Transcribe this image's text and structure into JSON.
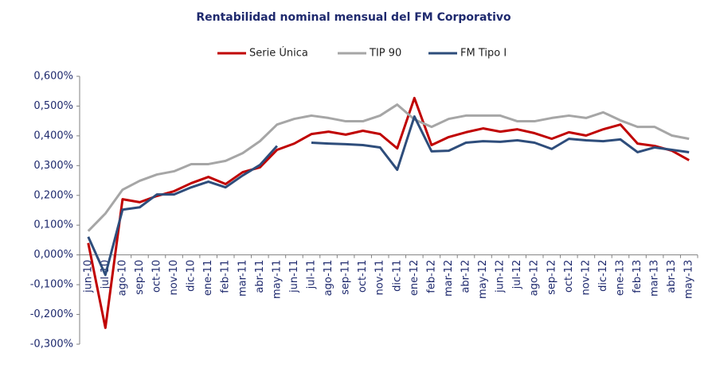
{
  "chart_data": {
    "type": "line",
    "title": "Rentabilidad nominal mensual del FM Corporativo",
    "categories": [
      "jun-10",
      "jul-10",
      "ago-10",
      "sep-10",
      "oct-10",
      "nov-10",
      "dic-10",
      "ene-11",
      "feb-11",
      "mar-11",
      "abr-11",
      "may-11",
      "jun-11",
      "jul-11",
      "ago-11",
      "sep-11",
      "oct-11",
      "nov-11",
      "dic-11",
      "ene-12",
      "feb-12",
      "mar-12",
      "abr-12",
      "may-12",
      "jun-12",
      "jul-12",
      "ago-12",
      "sep-12",
      "oct-12",
      "nov-12",
      "dic-12",
      "ene-13",
      "feb-13",
      "mar-13",
      "abr-13",
      "may-13"
    ],
    "series": [
      {
        "name": "Serie Única",
        "color": "#c00000",
        "values": [
          0.04,
          -0.245,
          0.187,
          0.177,
          0.198,
          0.214,
          0.241,
          0.262,
          0.238,
          0.278,
          0.294,
          0.353,
          0.374,
          0.406,
          0.414,
          0.404,
          0.417,
          0.406,
          0.358,
          0.527,
          0.369,
          0.396,
          0.412,
          0.425,
          0.414,
          0.422,
          0.409,
          0.39,
          0.412,
          0.401,
          0.422,
          0.438,
          0.374,
          0.366,
          0.35,
          0.318
        ]
      },
      {
        "name": "TIP 90",
        "color": "#a6a6a6",
        "values": [
          0.08,
          0.139,
          0.219,
          0.249,
          0.27,
          0.281,
          0.305,
          0.305,
          0.316,
          0.342,
          0.382,
          0.438,
          0.457,
          0.468,
          0.46,
          0.449,
          0.449,
          0.468,
          0.505,
          0.455,
          0.43,
          0.457,
          0.468,
          0.468,
          0.468,
          0.449,
          0.449,
          0.46,
          0.468,
          0.46,
          0.479,
          0.452,
          0.43,
          0.43,
          0.401,
          0.39
        ]
      },
      {
        "name": "FM Tipo I",
        "color": "#2e4d7b",
        "values": [
          0.061,
          -0.067,
          0.152,
          0.16,
          0.203,
          0.203,
          0.227,
          0.246,
          0.227,
          0.267,
          0.302,
          0.366,
          null,
          0.377,
          0.374,
          0.372,
          0.369,
          0.361,
          0.286,
          0.465,
          0.348,
          0.35,
          0.377,
          0.382,
          0.38,
          0.385,
          0.377,
          0.356,
          0.39,
          0.385,
          0.382,
          0.388,
          0.345,
          0.361,
          0.353,
          0.345
        ]
      }
    ],
    "ylim": [
      -0.3,
      0.6
    ],
    "yticks": [
      {
        "value": -0.3,
        "label": "-0,300%"
      },
      {
        "value": -0.2,
        "label": "-0,200%"
      },
      {
        "value": -0.1,
        "label": "-0,100%"
      },
      {
        "value": 0,
        "label": "0,000%"
      },
      {
        "value": 0.1,
        "label": "0,100%"
      },
      {
        "value": 0.2,
        "label": "0,200%"
      },
      {
        "value": 0.3,
        "label": "0,300%"
      },
      {
        "value": 0.4,
        "label": "0,400%"
      },
      {
        "value": 0.5,
        "label": "0,500%"
      },
      {
        "value": 0.6,
        "label": "0,600%"
      }
    ],
    "grid": false
  }
}
